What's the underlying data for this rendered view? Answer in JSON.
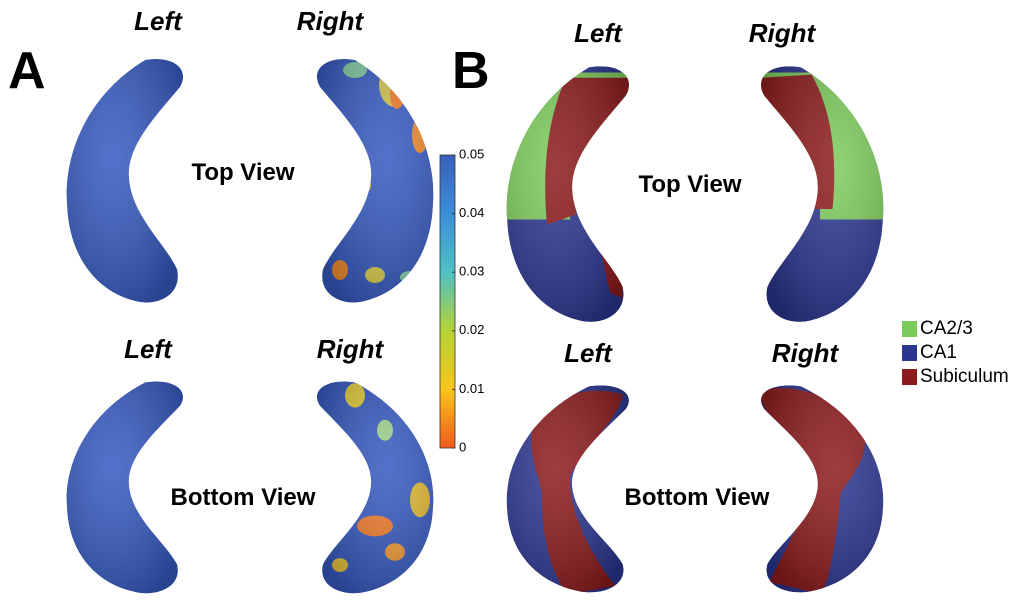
{
  "panels": [
    {
      "label": "A",
      "top": {
        "left": "Left",
        "right": "Right",
        "view": "Top View"
      },
      "bottom": {
        "left": "Left",
        "right": "Right",
        "view": "Bottom View"
      }
    },
    {
      "label": "B",
      "top": {
        "left": "Left",
        "right": "Right",
        "view": "Top View"
      },
      "bottom": {
        "left": "Left",
        "right": "Right",
        "view": "Bottom View"
      }
    }
  ],
  "colorbar": {
    "range": [
      0,
      0.05
    ],
    "ticks": [
      0,
      0.01,
      0.02,
      0.03,
      0.04,
      0.05
    ]
  },
  "legend": [
    {
      "name": "CA2/3",
      "color": "#7dcb5b"
    },
    {
      "name": "CA1",
      "color": "#2b3590"
    },
    {
      "name": "Subiculum",
      "color": "#8c1a1c"
    }
  ]
}
